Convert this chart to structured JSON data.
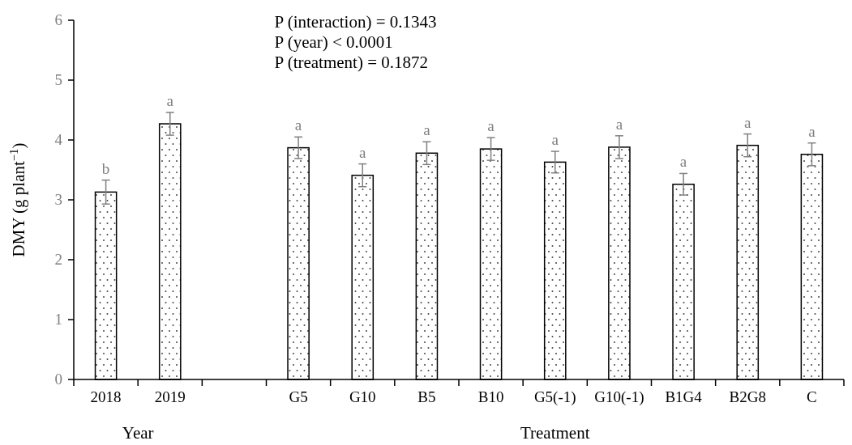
{
  "chart_data": {
    "type": "bar",
    "ylabel": "DMY (g plant$^{−1}$)",
    "categories": [
      "2018",
      "2019",
      null,
      "G5",
      "G10",
      "B5",
      "B10",
      "G5(-1)",
      "G10(-1)",
      "B1G4",
      "B2G8",
      "C"
    ],
    "values": [
      3.13,
      4.27,
      null,
      3.87,
      3.41,
      3.78,
      3.85,
      3.63,
      3.88,
      3.26,
      3.91,
      3.76
    ],
    "errors": [
      0.2,
      0.19,
      null,
      0.18,
      0.19,
      0.19,
      0.19,
      0.18,
      0.19,
      0.18,
      0.19,
      0.19
    ],
    "value_labels": [
      "b",
      "a",
      null,
      "a",
      "a",
      "a",
      "a",
      "a",
      "a",
      "a",
      "a",
      "a"
    ],
    "ylim": [
      0,
      6
    ],
    "yticks": [
      0,
      1,
      2,
      3,
      4,
      5,
      6
    ],
    "grid": false,
    "annotations": [
      "P (interaction) = 0.1343",
      "P (year) < 0.0001",
      "P (treatment) = 0.1872",
      "Year",
      "Treatment"
    ]
  }
}
